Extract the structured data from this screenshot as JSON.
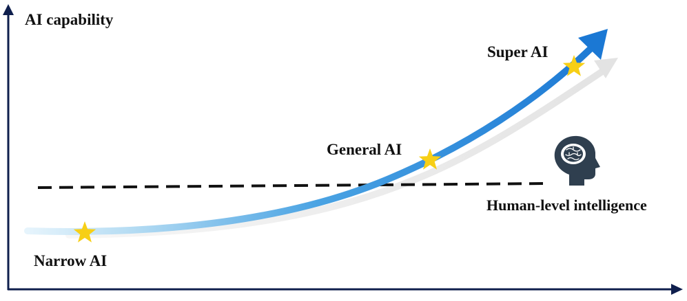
{
  "axis": {
    "y_label": "AI capability"
  },
  "stages": [
    {
      "id": "narrow",
      "label": "Narrow AI"
    },
    {
      "id": "general",
      "label": "General AI"
    },
    {
      "id": "super",
      "label": "Super AI"
    }
  ],
  "threshold": {
    "label": "Human-level intelligence"
  },
  "icons": {
    "stage_marker": "star-icon",
    "human": "human-head-brain-icon"
  },
  "colors": {
    "axis": "#0f1f4d",
    "ai_curve": "#1f7fd6",
    "ai_curve_light": "#bfe2f7",
    "human_curve": "#e6e6e6",
    "star": "#f7cf16",
    "dashed_line": "#111111",
    "head": "#2f3f4f"
  }
}
